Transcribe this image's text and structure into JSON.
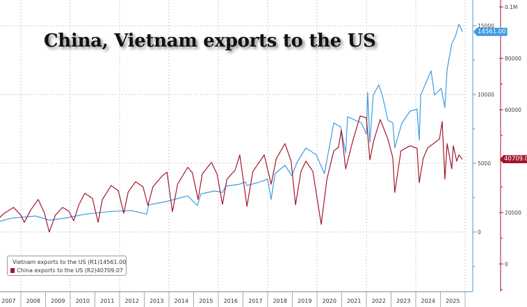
{
  "title": "China, Vietnam exports to the US",
  "colors": {
    "vietnam": "#3d9be0",
    "china": "#a3142b",
    "grid": "#bbbbbb"
  },
  "legend": [
    {
      "label": "Vietnam exports to the US (R1)",
      "value": "14561.00"
    },
    {
      "label": "China exports to the US (R2)",
      "value": "40709.07"
    }
  ],
  "last_value_tags": {
    "vietnam": "14561.00",
    "china": "40709.07"
  },
  "chart_data": {
    "type": "line",
    "title": "China, Vietnam exports to the US",
    "x_ticks": [
      "2007",
      "2008",
      "2009",
      "2010",
      "2011",
      "2012",
      "2013",
      "2014",
      "2015",
      "2016",
      "2017",
      "2018",
      "2019",
      "2020",
      "2021",
      "2022",
      "2023",
      "2024",
      "2025"
    ],
    "xlim": [
      2007,
      2026
    ],
    "axes": {
      "R1": {
        "ticks": [
          0,
          5000,
          10000,
          15000
        ],
        "tick_labels": [
          "0",
          "5000",
          "10000",
          "15000"
        ],
        "ylim": [
          -4500,
          16500
        ]
      },
      "R2": {
        "ticks": [
          0,
          20000,
          60000,
          80000,
          100000
        ],
        "tick_labels": [
          "0",
          "20000",
          "60000",
          "80000",
          "0.1M"
        ],
        "ylim": [
          -11000,
          102000
        ]
      }
    },
    "grid": true,
    "legend_position": "bottom-left",
    "series": [
      {
        "name": "Vietnam exports to the US (R1)",
        "axis": "R1",
        "color": "#3d9be0",
        "points": [
          [
            2007.0,
            700
          ],
          [
            2007.6,
            1000
          ],
          [
            2008.6,
            1160
          ],
          [
            2009.15,
            860
          ],
          [
            2009.8,
            1010
          ],
          [
            2010.6,
            1300
          ],
          [
            2011.7,
            1500
          ],
          [
            2012.5,
            1550
          ],
          [
            2013.1,
            1300
          ],
          [
            2013.18,
            1970
          ],
          [
            2013.92,
            2220
          ],
          [
            2014.76,
            2630
          ],
          [
            2015.15,
            1920
          ],
          [
            2015.3,
            2780
          ],
          [
            2015.85,
            2980
          ],
          [
            2016.17,
            2880
          ],
          [
            2016.3,
            3330
          ],
          [
            2016.87,
            3480
          ],
          [
            2017.1,
            3640
          ],
          [
            2017.16,
            3380
          ],
          [
            2017.6,
            3590
          ],
          [
            2018.0,
            3840
          ],
          [
            2018.14,
            2370
          ],
          [
            2018.3,
            4240
          ],
          [
            2018.7,
            4850
          ],
          [
            2018.98,
            4090
          ],
          [
            2019.2,
            5100
          ],
          [
            2019.55,
            6110
          ],
          [
            2019.97,
            5610
          ],
          [
            2020.3,
            4240
          ],
          [
            2020.68,
            7930
          ],
          [
            2020.96,
            7630
          ],
          [
            2021.16,
            5760
          ],
          [
            2021.24,
            8380
          ],
          [
            2021.8,
            7930
          ],
          [
            2022.0,
            7120
          ],
          [
            2022.05,
            10150
          ],
          [
            2022.14,
            6520
          ],
          [
            2022.28,
            9950
          ],
          [
            2022.5,
            10700
          ],
          [
            2022.65,
            9900
          ],
          [
            2022.87,
            8130
          ],
          [
            2023.07,
            7930
          ],
          [
            2023.15,
            6110
          ],
          [
            2023.44,
            7930
          ],
          [
            2023.77,
            8790
          ],
          [
            2024.05,
            8940
          ],
          [
            2024.14,
            6670
          ],
          [
            2024.2,
            9950
          ],
          [
            2024.62,
            11720
          ],
          [
            2024.76,
            9950
          ],
          [
            2025.03,
            10450
          ],
          [
            2025.18,
            9040
          ],
          [
            2025.27,
            11820
          ],
          [
            2025.46,
            13690
          ],
          [
            2025.6,
            14190
          ],
          [
            2025.75,
            15100
          ],
          [
            2025.89,
            14561
          ]
        ]
      },
      {
        "name": "China exports to the US (R2)",
        "axis": "R2",
        "color": "#a3142b",
        "points": [
          [
            2007.0,
            16750
          ],
          [
            2007.3,
            19500
          ],
          [
            2007.7,
            22000
          ],
          [
            2008.0,
            19000
          ],
          [
            2008.14,
            16200
          ],
          [
            2008.4,
            21000
          ],
          [
            2008.7,
            25100
          ],
          [
            2008.95,
            20000
          ],
          [
            2009.15,
            12400
          ],
          [
            2009.4,
            19000
          ],
          [
            2009.69,
            22000
          ],
          [
            2009.95,
            20500
          ],
          [
            2010.14,
            16750
          ],
          [
            2010.35,
            23000
          ],
          [
            2010.59,
            27500
          ],
          [
            2010.9,
            25500
          ],
          [
            2011.13,
            16200
          ],
          [
            2011.3,
            25000
          ],
          [
            2011.66,
            30500
          ],
          [
            2011.95,
            28500
          ],
          [
            2012.17,
            19700
          ],
          [
            2012.35,
            28000
          ],
          [
            2012.65,
            32000
          ],
          [
            2012.95,
            30000
          ],
          [
            2013.15,
            22700
          ],
          [
            2013.35,
            30000
          ],
          [
            2013.7,
            34000
          ],
          [
            2013.92,
            35700
          ],
          [
            2014.14,
            20300
          ],
          [
            2014.35,
            31000
          ],
          [
            2014.76,
            37600
          ],
          [
            2014.95,
            35500
          ],
          [
            2015.18,
            25100
          ],
          [
            2015.35,
            35000
          ],
          [
            2015.72,
            39500
          ],
          [
            2015.95,
            35000
          ],
          [
            2016.17,
            23200
          ],
          [
            2016.35,
            33000
          ],
          [
            2016.68,
            36500
          ],
          [
            2016.87,
            42400
          ],
          [
            2017.16,
            22400
          ],
          [
            2017.4,
            36000
          ],
          [
            2017.86,
            42400
          ],
          [
            2018.14,
            31000
          ],
          [
            2018.35,
            41000
          ],
          [
            2018.7,
            46800
          ],
          [
            2018.95,
            40000
          ],
          [
            2019.13,
            23000
          ],
          [
            2019.35,
            36000
          ],
          [
            2019.55,
            40000
          ],
          [
            2019.83,
            36000
          ],
          [
            2020.17,
            15400
          ],
          [
            2020.4,
            33000
          ],
          [
            2020.68,
            44000
          ],
          [
            2020.87,
            45400
          ],
          [
            2020.98,
            52000
          ],
          [
            2021.16,
            37000
          ],
          [
            2021.45,
            48000
          ],
          [
            2021.75,
            57600
          ],
          [
            2022.0,
            56800
          ],
          [
            2022.14,
            40500
          ],
          [
            2022.3,
            48000
          ],
          [
            2022.56,
            56200
          ],
          [
            2022.87,
            48600
          ],
          [
            2023.07,
            41300
          ],
          [
            2023.15,
            27800
          ],
          [
            2023.4,
            44000
          ],
          [
            2023.77,
            46000
          ],
          [
            2024.05,
            45000
          ],
          [
            2024.14,
            31600
          ],
          [
            2024.3,
            41000
          ],
          [
            2024.48,
            45100
          ],
          [
            2024.96,
            48600
          ],
          [
            2025.07,
            55400
          ],
          [
            2025.18,
            33000
          ],
          [
            2025.27,
            46800
          ],
          [
            2025.46,
            37000
          ],
          [
            2025.52,
            46000
          ],
          [
            2025.66,
            40000
          ],
          [
            2025.75,
            42400
          ],
          [
            2025.89,
            40709.07
          ]
        ]
      }
    ]
  }
}
